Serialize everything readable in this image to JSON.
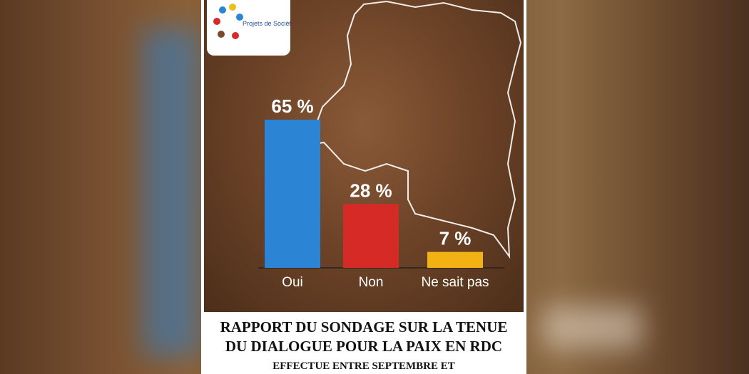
{
  "logo": {
    "text": "Projets de Société"
  },
  "chart_data": {
    "type": "bar",
    "categories": [
      "Oui",
      "Non",
      "Ne sait pas"
    ],
    "values": [
      65,
      28,
      7
    ],
    "value_labels": [
      "65 %",
      "28 %",
      "7 %"
    ],
    "colors": [
      "#2b85d4",
      "#d62a27",
      "#f2b213"
    ],
    "title": "RAPPORT DU SONDAGE SUR LA TENUE DU DIALOGUE POUR LA PAIX EN RDC",
    "subtitle": "EFFECTUE ENTRE SEPTEMBRE ET"
  }
}
